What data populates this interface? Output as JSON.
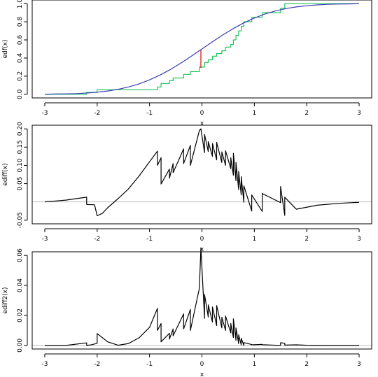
{
  "colors": {
    "ecdf": "#22c55e",
    "cdf": "#3b3cb0",
    "ks_segment": "#dd0000",
    "curve": "#000000",
    "zero_line": "#bdbdbd",
    "axis": "#000000"
  },
  "chart_data": [
    {
      "type": "line",
      "xlabel": "x",
      "ylabel": "edf(x)",
      "xlim": [
        -3,
        3
      ],
      "ylim": [
        0,
        1
      ],
      "x_ticks": [
        -3,
        -2,
        -1,
        0,
        1,
        2,
        3
      ],
      "y_ticks": [
        0.0,
        0.2,
        0.4,
        0.6,
        0.8,
        1.0
      ],
      "x_tick_labels": [
        "-3",
        "-2",
        "-1",
        "0",
        "1",
        "2",
        "3"
      ],
      "y_tick_labels": [
        "0.0",
        "0.2",
        "0.4",
        "0.6",
        "0.8",
        "1.0"
      ],
      "grid": false,
      "series": [
        {
          "kind": "step",
          "color_key": "ecdf",
          "x": [
            -3.0,
            -2.2,
            -2.2,
            -2.0,
            -2.0,
            -0.85,
            -0.85,
            -0.78,
            -0.78,
            -0.62,
            -0.62,
            -0.55,
            -0.55,
            -0.35,
            -0.35,
            -0.22,
            -0.22,
            -0.05,
            -0.05,
            0.05,
            0.05,
            0.12,
            0.12,
            0.2,
            0.2,
            0.28,
            0.28,
            0.38,
            0.38,
            0.45,
            0.45,
            0.55,
            0.55,
            0.6,
            0.6,
            0.65,
            0.65,
            0.7,
            0.7,
            0.75,
            0.75,
            0.8,
            0.8,
            0.95,
            0.95,
            1.15,
            1.15,
            1.5,
            1.5,
            1.58,
            1.58,
            3.0
          ],
          "y": [
            0.0,
            0.0,
            0.02,
            0.02,
            0.05,
            0.05,
            0.08,
            0.08,
            0.12,
            0.12,
            0.15,
            0.15,
            0.18,
            0.18,
            0.22,
            0.22,
            0.25,
            0.25,
            0.3,
            0.3,
            0.35,
            0.35,
            0.38,
            0.38,
            0.42,
            0.42,
            0.45,
            0.45,
            0.48,
            0.48,
            0.52,
            0.52,
            0.55,
            0.55,
            0.6,
            0.6,
            0.65,
            0.65,
            0.7,
            0.7,
            0.75,
            0.75,
            0.8,
            0.8,
            0.85,
            0.85,
            0.9,
            0.9,
            0.95,
            0.95,
            1.0,
            1.0
          ]
        },
        {
          "kind": "function",
          "color_key": "cdf",
          "x": [
            -3.0,
            -2.8,
            -2.6,
            -2.4,
            -2.2,
            -2.0,
            -1.8,
            -1.6,
            -1.4,
            -1.2,
            -1.0,
            -0.8,
            -0.6,
            -0.4,
            -0.2,
            0.0,
            0.2,
            0.4,
            0.6,
            0.8,
            1.0,
            1.2,
            1.4,
            1.6,
            1.8,
            2.0,
            2.2,
            2.4,
            2.6,
            2.8,
            3.0
          ],
          "y": [
            0.001,
            0.003,
            0.005,
            0.008,
            0.014,
            0.023,
            0.036,
            0.055,
            0.081,
            0.115,
            0.159,
            0.212,
            0.274,
            0.345,
            0.421,
            0.5,
            0.579,
            0.655,
            0.726,
            0.788,
            0.841,
            0.885,
            0.919,
            0.945,
            0.964,
            0.977,
            0.986,
            0.992,
            0.995,
            0.997,
            0.999
          ]
        },
        {
          "kind": "segment",
          "color_key": "ks_segment",
          "x": [
            -0.02,
            -0.02
          ],
          "y": [
            0.29,
            0.49
          ]
        }
      ]
    },
    {
      "type": "line",
      "xlabel": "x",
      "ylabel": "ediff(x)",
      "xlim": [
        -3,
        3
      ],
      "ylim": [
        -0.05,
        0.2
      ],
      "x_ticks": [
        -3,
        -2,
        -1,
        0,
        1,
        2,
        3
      ],
      "y_ticks": [
        -0.05,
        0.05,
        0.1,
        0.15,
        0.2
      ],
      "x_tick_labels": [
        "-3",
        "-2",
        "-1",
        "0",
        "1",
        "2",
        "3"
      ],
      "y_tick_labels": [
        "-0.05",
        "0.05",
        "0.10",
        "0.15",
        "0.20"
      ],
      "reference_line_y": 0,
      "grid": false,
      "series": [
        {
          "kind": "function",
          "color_key": "curve",
          "x": [
            -3.0,
            -2.6,
            -2.2,
            -2.2,
            -2.05,
            -2.0,
            -1.9,
            -1.8,
            -1.6,
            -1.4,
            -1.2,
            -1.0,
            -0.85,
            -0.85,
            -0.78,
            -0.78,
            -0.62,
            -0.62,
            -0.55,
            -0.55,
            -0.35,
            -0.35,
            -0.22,
            -0.22,
            -0.05,
            -0.02,
            0.05,
            0.05,
            0.12,
            0.12,
            0.2,
            0.2,
            0.28,
            0.28,
            0.38,
            0.38,
            0.45,
            0.45,
            0.55,
            0.55,
            0.6,
            0.6,
            0.65,
            0.65,
            0.7,
            0.7,
            0.75,
            0.75,
            0.8,
            0.8,
            0.95,
            0.95,
            1.15,
            1.15,
            1.5,
            1.5,
            1.58,
            1.58,
            1.8,
            2.2,
            2.6,
            3.0
          ],
          "y": [
            0.0,
            0.005,
            0.013,
            -0.007,
            -0.008,
            -0.038,
            -0.031,
            -0.016,
            0.009,
            0.036,
            0.071,
            0.11,
            0.139,
            0.1,
            0.121,
            0.049,
            0.09,
            0.065,
            0.105,
            0.08,
            0.145,
            0.105,
            0.155,
            0.1,
            0.195,
            0.2,
            0.135,
            0.185,
            0.138,
            0.165,
            0.125,
            0.16,
            0.115,
            0.163,
            0.108,
            0.137,
            0.1,
            0.14,
            0.091,
            0.121,
            0.073,
            0.133,
            0.058,
            0.108,
            0.034,
            0.084,
            0.019,
            0.069,
            -0.001,
            0.044,
            -0.025,
            0.019,
            -0.026,
            0.023,
            -0.002,
            0.042,
            -0.037,
            0.013,
            -0.02,
            -0.009,
            -0.004,
            -0.001
          ]
        }
      ]
    },
    {
      "type": "line",
      "xlabel": "x",
      "ylabel": "ediff2(x)",
      "xlim": [
        -3,
        3
      ],
      "ylim": [
        0,
        0.06
      ],
      "x_ticks": [
        -3,
        -2,
        -1,
        0,
        1,
        2,
        3
      ],
      "y_ticks": [
        0.0,
        0.02,
        0.04,
        0.06
      ],
      "x_tick_labels": [
        "-3",
        "-2",
        "-1",
        "0",
        "1",
        "2",
        "3"
      ],
      "y_tick_labels": [
        "0.00",
        "0.02",
        "0.04",
        "0.06"
      ],
      "reference_line_y": 0,
      "grid": false,
      "series": [
        {
          "kind": "function",
          "color_key": "curve",
          "x": [
            -3.0,
            -2.6,
            -2.2,
            -2.2,
            -2.1,
            -2.0,
            -2.0,
            -1.8,
            -1.6,
            -1.4,
            -1.2,
            -1.0,
            -0.85,
            -0.85,
            -0.78,
            -0.78,
            -0.62,
            -0.62,
            -0.55,
            -0.55,
            -0.35,
            -0.35,
            -0.22,
            -0.22,
            -0.05,
            -0.02,
            0.05,
            0.05,
            0.12,
            0.12,
            0.2,
            0.2,
            0.28,
            0.28,
            0.38,
            0.38,
            0.45,
            0.45,
            0.55,
            0.55,
            0.6,
            0.6,
            0.65,
            0.65,
            0.7,
            0.7,
            0.75,
            0.75,
            0.8,
            0.8,
            0.95,
            0.95,
            1.15,
            1.15,
            1.5,
            1.5,
            1.58,
            1.58,
            1.8,
            2.0,
            2.3,
            3.0
          ],
          "y": [
            0.0,
            0.0,
            0.0017,
            0.0,
            0.0005,
            0.0014,
            0.0079,
            0.0024,
            0.0001,
            0.0013,
            0.0051,
            0.0121,
            0.0247,
            0.01,
            0.0146,
            0.0024,
            0.0081,
            0.0042,
            0.011,
            0.0064,
            0.021,
            0.011,
            0.024,
            0.01,
            0.038,
            0.065,
            0.018,
            0.034,
            0.019,
            0.027,
            0.0156,
            0.0256,
            0.0132,
            0.0266,
            0.0117,
            0.0188,
            0.01,
            0.0196,
            0.0083,
            0.0146,
            0.0053,
            0.0177,
            0.0034,
            0.0117,
            0.0012,
            0.0071,
            0.0004,
            0.0048,
            0.0,
            0.0019,
            0.0006,
            0.0004,
            0.0007,
            0.0005,
            0.0,
            0.0018,
            0.0014,
            0.0002,
            0.0004,
            0.0001,
            0.0,
            0.0
          ]
        }
      ]
    }
  ]
}
